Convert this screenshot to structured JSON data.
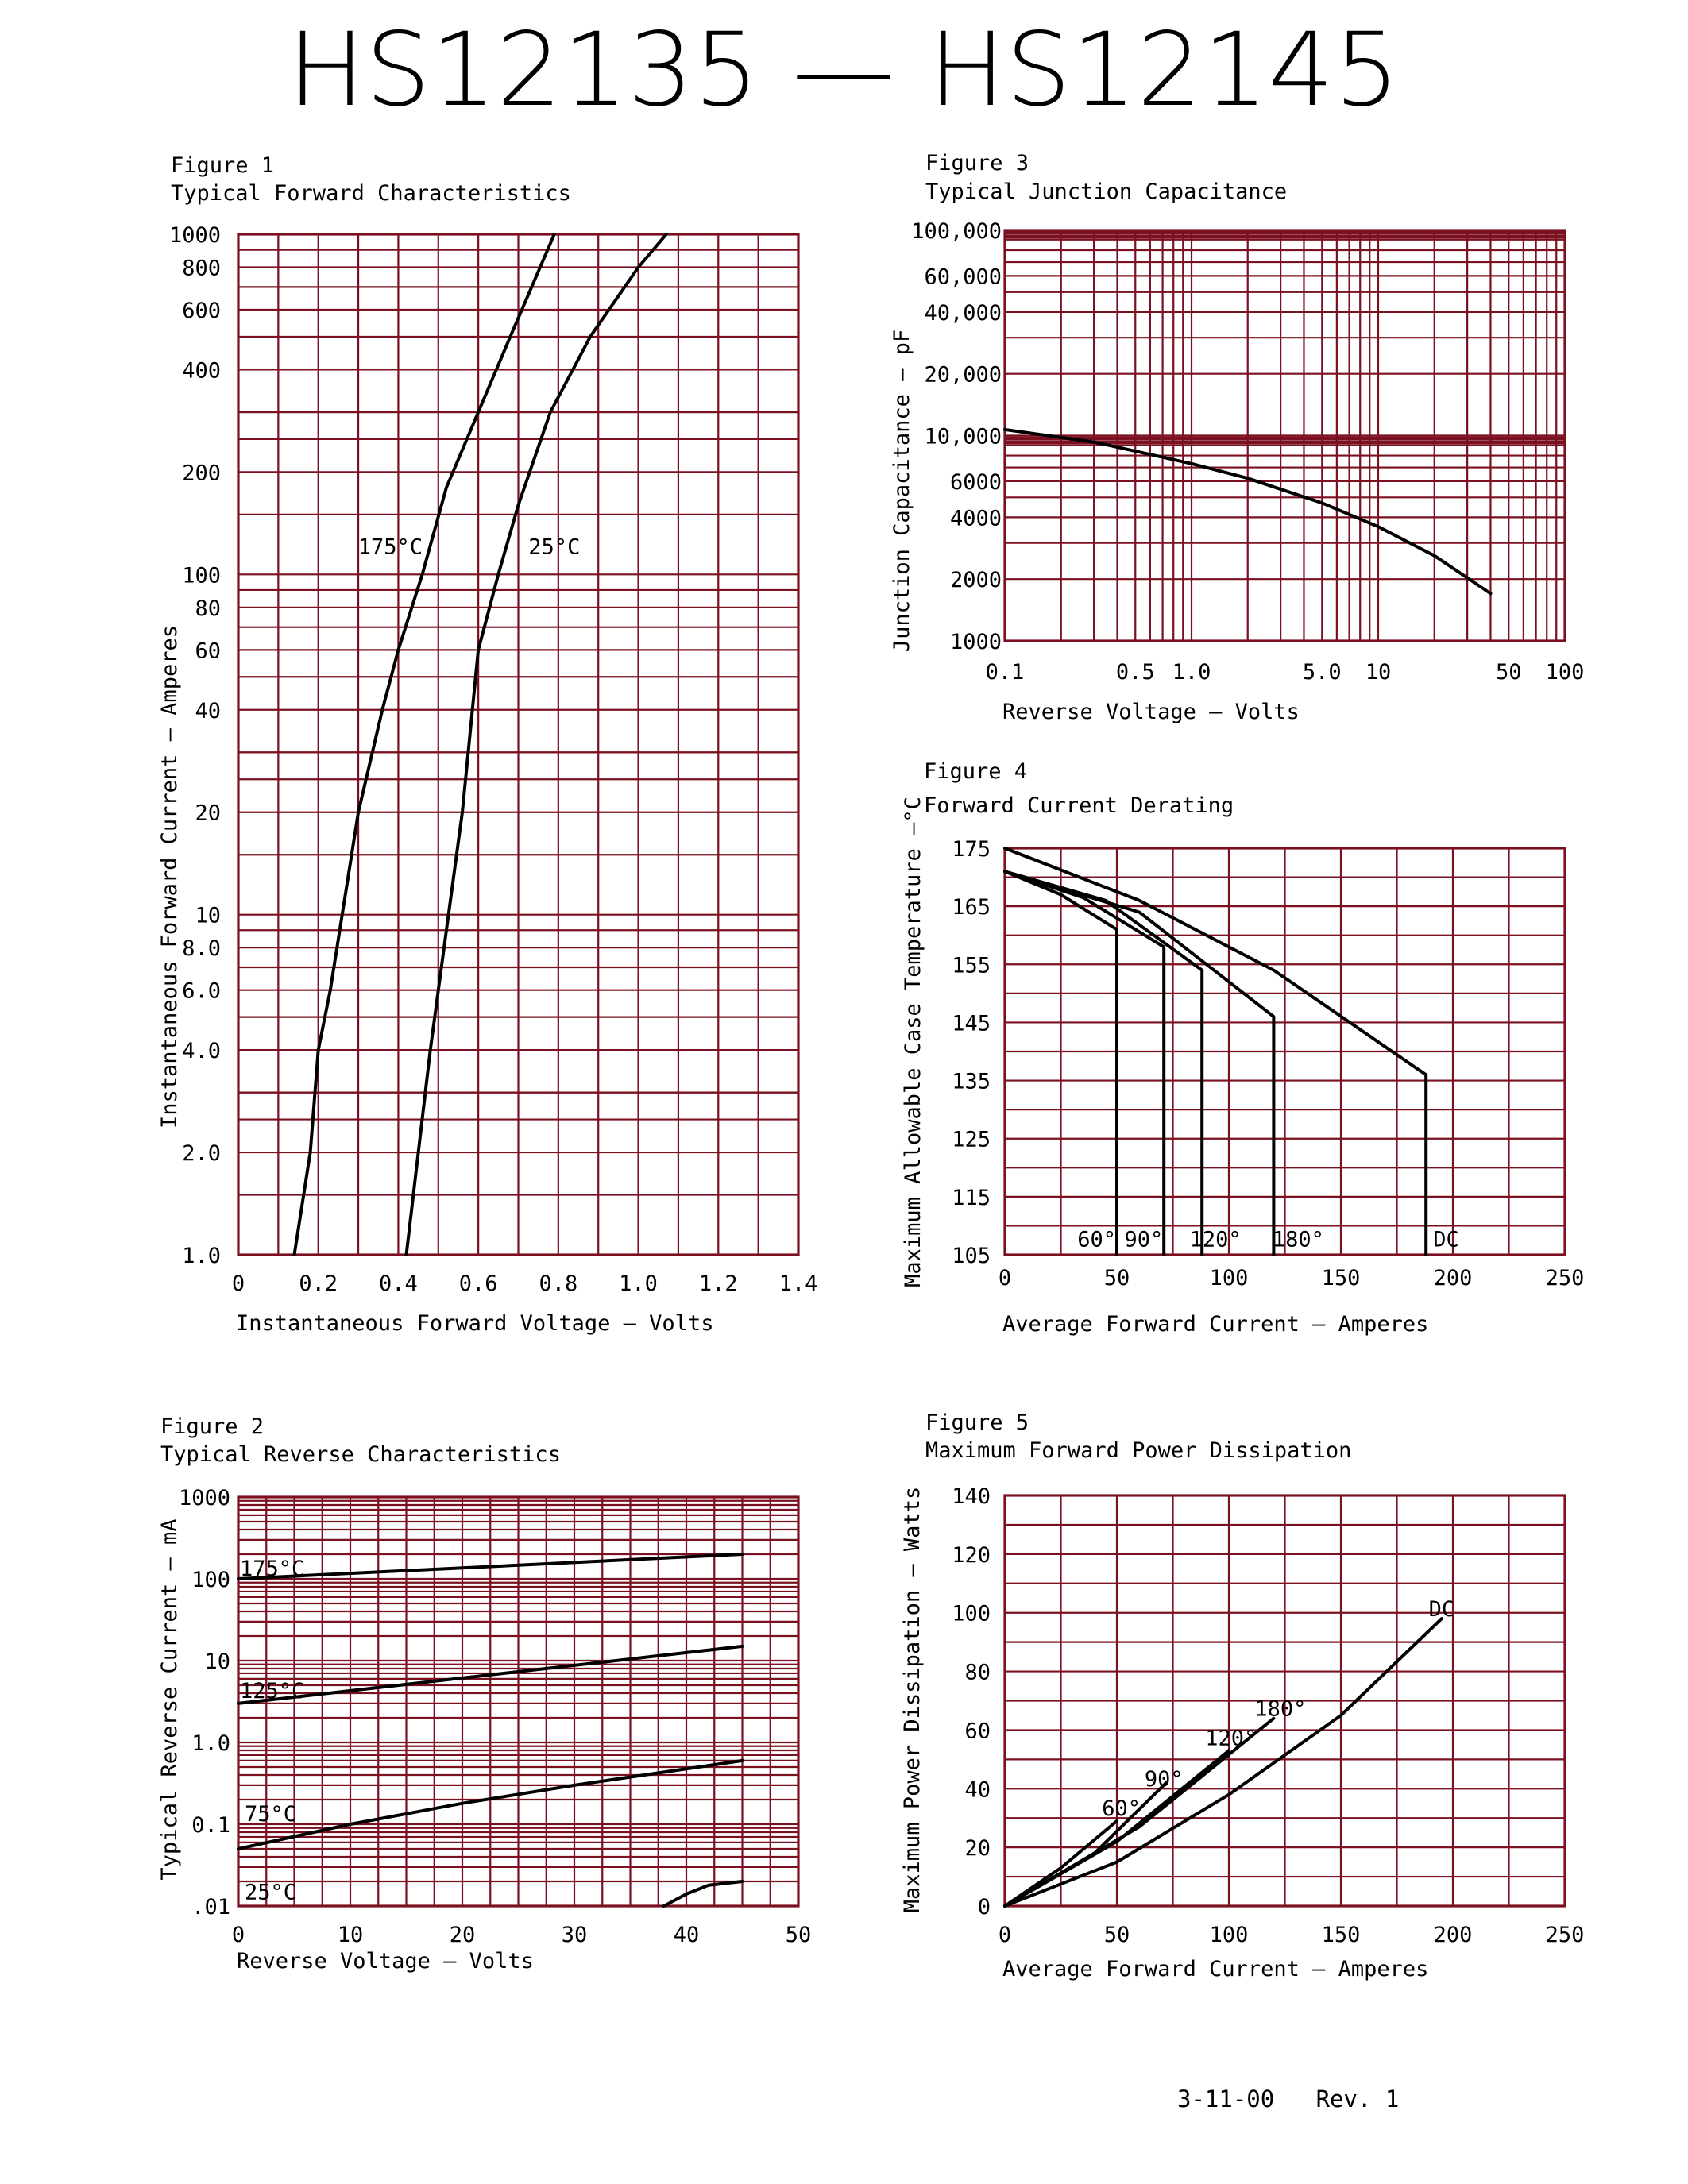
{
  "page": {
    "title": "HS12135 — HS12145",
    "footer": "3-11-00   Rev. 1"
  },
  "colors": {
    "grid": "#7a1020",
    "curve": "#000000",
    "text": "#000000"
  },
  "chart_data": [
    {
      "figure": "Figure 1",
      "title": "Typical Forward Characteristics",
      "type": "line",
      "xlabel": "Instantaneous Forward Voltage — Volts",
      "ylabel": "Instantaneous Forward Current — Amperes",
      "xlim": [
        0,
        1.4
      ],
      "ylim": [
        1,
        1000
      ],
      "yscale": "log",
      "xticks": [
        "0",
        "0.2",
        "0.4",
        "0.6",
        "0.8",
        "1.0",
        "1.2",
        "1.4"
      ],
      "yticks": [
        {
          "v": 1,
          "label": "1.0"
        },
        {
          "v": 2,
          "label": "2.0"
        },
        {
          "v": 4,
          "label": "4.0"
        },
        {
          "v": 6,
          "label": "6.0"
        },
        {
          "v": 8,
          "label": "8.0"
        },
        {
          "v": 10,
          "label": "10"
        },
        {
          "v": 20,
          "label": "20"
        },
        {
          "v": 40,
          "label": "40"
        },
        {
          "v": 60,
          "label": "60"
        },
        {
          "v": 80,
          "label": "80"
        },
        {
          "v": 100,
          "label": "100"
        },
        {
          "v": 200,
          "label": "200"
        },
        {
          "v": 400,
          "label": "400"
        },
        {
          "v": 600,
          "label": "600"
        },
        {
          "v": 800,
          "label": "800"
        },
        {
          "v": 1000,
          "label": "1000"
        }
      ],
      "grid": true,
      "series": [
        {
          "name": "175°C",
          "x": [
            0.14,
            0.18,
            0.2,
            0.23,
            0.3,
            0.36,
            0.4,
            0.46,
            0.52,
            0.6,
            0.68,
            0.79
          ],
          "y": [
            1,
            2,
            4,
            6,
            20,
            40,
            60,
            100,
            180,
            300,
            500,
            1000
          ]
        },
        {
          "name": "25°C",
          "x": [
            0.42,
            0.45,
            0.48,
            0.5,
            0.56,
            0.6,
            0.65,
            0.7,
            0.78,
            0.88,
            1.0,
            1.07
          ],
          "y": [
            1,
            2,
            4,
            6,
            20,
            60,
            100,
            160,
            300,
            500,
            800,
            1000
          ]
        }
      ]
    },
    {
      "figure": "Figure 2",
      "title": "Typical Reverse Characteristics",
      "type": "line",
      "xlabel": "Reverse Voltage — Volts",
      "ylabel": "Typical Reverse Current — mA",
      "xlim": [
        0,
        50
      ],
      "ylim": [
        0.01,
        1000
      ],
      "yscale": "log",
      "xticks": [
        "0",
        "10",
        "20",
        "30",
        "40",
        "50"
      ],
      "yticks": [
        {
          "v": 0.01,
          "label": ".01"
        },
        {
          "v": 0.1,
          "label": "0.1"
        },
        {
          "v": 1,
          "label": "1.0"
        },
        {
          "v": 10,
          "label": "10"
        },
        {
          "v": 100,
          "label": "100"
        },
        {
          "v": 1000,
          "label": "1000"
        }
      ],
      "grid": true,
      "series": [
        {
          "name": "175°C",
          "x": [
            0,
            45
          ],
          "y": [
            100,
            200
          ]
        },
        {
          "name": "125°C",
          "x": [
            0,
            45
          ],
          "y": [
            3,
            15
          ]
        },
        {
          "name": "75°C",
          "x": [
            0,
            10,
            20,
            30,
            45
          ],
          "y": [
            0.05,
            0.1,
            0.18,
            0.3,
            0.6
          ]
        },
        {
          "name": "25°C",
          "x": [
            38,
            40,
            42,
            45
          ],
          "y": [
            0.01,
            0.014,
            0.018,
            0.02
          ]
        }
      ]
    },
    {
      "figure": "Figure 3",
      "title": "Typical Junction Capacitance",
      "type": "line",
      "xlabel": "Reverse Voltage — Volts",
      "ylabel": "Junction Capacitance — pF",
      "xlim": [
        0.1,
        100
      ],
      "ylim": [
        1000,
        100000
      ],
      "xscale": "log",
      "yscale": "log",
      "xticks": [
        {
          "v": 0.1,
          "label": "0.1"
        },
        {
          "v": 0.5,
          "label": "0.5"
        },
        {
          "v": 1,
          "label": "1.0"
        },
        {
          "v": 5,
          "label": "5.0"
        },
        {
          "v": 10,
          "label": "10"
        },
        {
          "v": 50,
          "label": "50"
        },
        {
          "v": 100,
          "label": "100"
        }
      ],
      "yticks": [
        {
          "v": 1000,
          "label": "1000"
        },
        {
          "v": 2000,
          "label": "2000"
        },
        {
          "v": 4000,
          "label": "4000"
        },
        {
          "v": 6000,
          "label": "6000"
        },
        {
          "v": 10000,
          "label": "10,000"
        },
        {
          "v": 20000,
          "label": "20,000"
        },
        {
          "v": 40000,
          "label": "40,000"
        },
        {
          "v": 60000,
          "label": "60,000"
        },
        {
          "v": 100000,
          "label": "100,000"
        }
      ],
      "grid": true,
      "series": [
        {
          "x": [
            0.1,
            0.3,
            0.5,
            1,
            2,
            5,
            10,
            20,
            40
          ],
          "y": [
            10700,
            9300,
            8400,
            7300,
            6200,
            4700,
            3600,
            2600,
            1700
          ]
        }
      ]
    },
    {
      "figure": "Figure 4",
      "title": "Forward Current Derating",
      "type": "line",
      "xlabel": "Average Forward Current — Amperes",
      "ylabel": "Maximum Allowable Case Temperature —°C",
      "xlim": [
        0,
        250
      ],
      "ylim": [
        105,
        175
      ],
      "xticks": [
        "0",
        "50",
        "100",
        "150",
        "200",
        "250"
      ],
      "yticks": [
        "105",
        "115",
        "125",
        "135",
        "145",
        "155",
        "165",
        "175"
      ],
      "grid": true,
      "series": [
        {
          "name": "60°",
          "x": [
            0,
            25,
            50,
            50
          ],
          "y": [
            171,
            167,
            161,
            105
          ],
          "label_x": 41,
          "label_y": 107.5
        },
        {
          "name": "90°",
          "x": [
            0,
            35,
            71,
            71
          ],
          "y": [
            171,
            166.5,
            158,
            105
          ],
          "label_x": 62,
          "label_y": 107.5
        },
        {
          "name": "120°",
          "x": [
            0,
            45,
            88,
            88
          ],
          "y": [
            171,
            166,
            154,
            105
          ],
          "label_x": 94,
          "label_y": 107.5
        },
        {
          "name": "180°",
          "x": [
            0,
            60,
            120,
            120
          ],
          "y": [
            171,
            164,
            146,
            105
          ],
          "label_x": 131,
          "label_y": 107.5
        },
        {
          "name": "DC",
          "x": [
            0,
            60,
            120,
            188,
            188
          ],
          "y": [
            175,
            166,
            154,
            136,
            105
          ],
          "label_x": 197,
          "label_y": 107.5
        }
      ]
    },
    {
      "figure": "Figure 5",
      "title": "Maximum Forward Power Dissipation",
      "type": "line",
      "xlabel": "Average Forward Current — Amperes",
      "ylabel": "Maximum Power Dissipation — Watts",
      "xlim": [
        0,
        250
      ],
      "ylim": [
        0,
        140
      ],
      "xticks": [
        "0",
        "50",
        "100",
        "150",
        "200",
        "250"
      ],
      "yticks": [
        "0",
        "20",
        "40",
        "60",
        "80",
        "100",
        "120",
        "140"
      ],
      "grid": true,
      "series": [
        {
          "name": "60°",
          "x": [
            0,
            25,
            50
          ],
          "y": [
            0,
            13,
            29
          ],
          "label_x": 52,
          "label_y": 33
        },
        {
          "name": "90°",
          "x": [
            0,
            40,
            72
          ],
          "y": [
            0,
            18,
            42
          ],
          "label_x": 71,
          "label_y": 43
        },
        {
          "name": "120°",
          "x": [
            0,
            50,
            100
          ],
          "y": [
            0,
            22,
            53
          ],
          "label_x": 101,
          "label_y": 57
        },
        {
          "name": "180°",
          "x": [
            0,
            60,
            120
          ],
          "y": [
            0,
            27,
            64
          ],
          "label_x": 123,
          "label_y": 67
        },
        {
          "name": "DC",
          "x": [
            0,
            50,
            100,
            150,
            195
          ],
          "y": [
            0,
            15,
            38,
            65,
            98
          ],
          "label_x": 195,
          "label_y": 101
        }
      ]
    }
  ]
}
